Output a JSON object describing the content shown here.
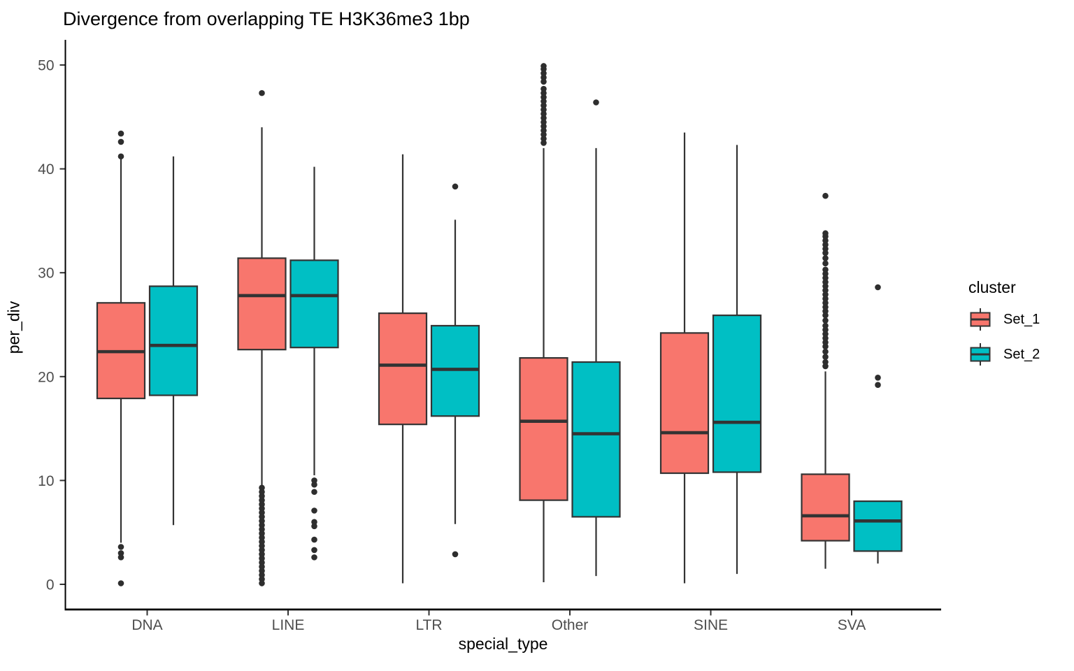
{
  "style": {
    "stroke": "#333333",
    "outlier_color": "#2E2E2E",
    "axis_line_color": "#000000",
    "axis_text_color": "#4D4D4D",
    "background": "#FFFFFF"
  },
  "chart_data": {
    "type": "boxplot",
    "title": "Divergence from overlapping TE H3K36me3 1bp",
    "xlabel": "special_type",
    "ylabel": "per_div",
    "ylim": [
      -2.4,
      52.4
    ],
    "y_ticks": [
      0,
      10,
      20,
      30,
      40,
      50
    ],
    "categories": [
      "DNA",
      "LINE",
      "LTR",
      "Other",
      "SINE",
      "SVA"
    ],
    "legend_title": "cluster",
    "legend_position": "right",
    "grid": false,
    "series": [
      {
        "name": "Set_1",
        "color": "#F8766D",
        "boxes": [
          {
            "whislo": 4.0,
            "q1": 17.9,
            "med": 22.4,
            "q3": 27.1,
            "whishi": 41.1,
            "outliers_high": [
              43.4,
              42.6,
              41.2
            ],
            "outliers_low": [
              3.6,
              3.0,
              2.6,
              0.1
            ]
          },
          {
            "whislo": 9.5,
            "q1": 22.6,
            "med": 27.8,
            "q3": 31.4,
            "whishi": 44.0,
            "outliers_high": [
              47.3
            ],
            "outliers_low": [
              9.3,
              8.9,
              8.5,
              8.1,
              7.7,
              7.3,
              6.9,
              6.5,
              6.1,
              5.7,
              5.3,
              4.9,
              4.5,
              4.1,
              3.7,
              3.3,
              2.9,
              2.5,
              2.1,
              1.7,
              1.3,
              0.9,
              0.5,
              0.1
            ]
          },
          {
            "whislo": 0.1,
            "q1": 15.4,
            "med": 21.1,
            "q3": 26.1,
            "whishi": 41.4,
            "outliers_high": [],
            "outliers_low": []
          },
          {
            "whislo": 0.2,
            "q1": 8.1,
            "med": 15.7,
            "q3": 21.8,
            "whishi": 42.0,
            "outliers_high": [
              49.9,
              49.6,
              49.2,
              48.8,
              48.4,
              47.7,
              47.3,
              46.9,
              46.5,
              46.1,
              45.7,
              45.3,
              44.9,
              44.5,
              44.1,
              43.7,
              43.3,
              42.9,
              42.5
            ],
            "outliers_low": []
          },
          {
            "whislo": 0.1,
            "q1": 10.7,
            "med": 14.6,
            "q3": 24.2,
            "whishi": 43.5,
            "outliers_high": [],
            "outliers_low": []
          },
          {
            "whislo": 1.5,
            "q1": 4.2,
            "med": 6.6,
            "q3": 10.6,
            "whishi": 20.5,
            "outliers_high": [
              37.4,
              33.8,
              33.5,
              33.1,
              32.7,
              32.3,
              31.9,
              31.4,
              30.9,
              30.3,
              29.9,
              29.5,
              29.1,
              28.7,
              28.3,
              27.9,
              27.5,
              27.1,
              26.7,
              26.3,
              25.9,
              25.4,
              24.9,
              24.5,
              24.1,
              23.7,
              23.3,
              22.9,
              22.4,
              21.9,
              21.4,
              21.0
            ],
            "outliers_low": []
          }
        ]
      },
      {
        "name": "Set_2",
        "color": "#00BFC4",
        "boxes": [
          {
            "whislo": 5.7,
            "q1": 18.2,
            "med": 23.0,
            "q3": 28.7,
            "whishi": 41.2,
            "outliers_high": [],
            "outliers_low": []
          },
          {
            "whislo": 10.5,
            "q1": 22.8,
            "med": 27.8,
            "q3": 31.2,
            "whishi": 40.2,
            "outliers_high": [],
            "outliers_low": [
              10.0,
              9.6,
              8.9,
              7.1,
              6.0,
              5.6,
              4.3,
              3.3,
              2.6
            ]
          },
          {
            "whislo": 5.8,
            "q1": 16.2,
            "med": 20.7,
            "q3": 24.9,
            "whishi": 35.1,
            "outliers_high": [
              38.3
            ],
            "outliers_low": [
              2.9
            ]
          },
          {
            "whislo": 0.8,
            "q1": 6.5,
            "med": 14.5,
            "q3": 21.4,
            "whishi": 42.0,
            "outliers_high": [
              46.4
            ],
            "outliers_low": []
          },
          {
            "whislo": 1.0,
            "q1": 10.8,
            "med": 15.6,
            "q3": 25.9,
            "whishi": 42.3,
            "outliers_high": [],
            "outliers_low": []
          },
          {
            "whislo": 2.0,
            "q1": 3.2,
            "med": 6.1,
            "q3": 8.0,
            "whishi": 8.0,
            "outliers_high": [
              28.6,
              19.9,
              19.2
            ],
            "outliers_low": []
          }
        ]
      }
    ]
  }
}
